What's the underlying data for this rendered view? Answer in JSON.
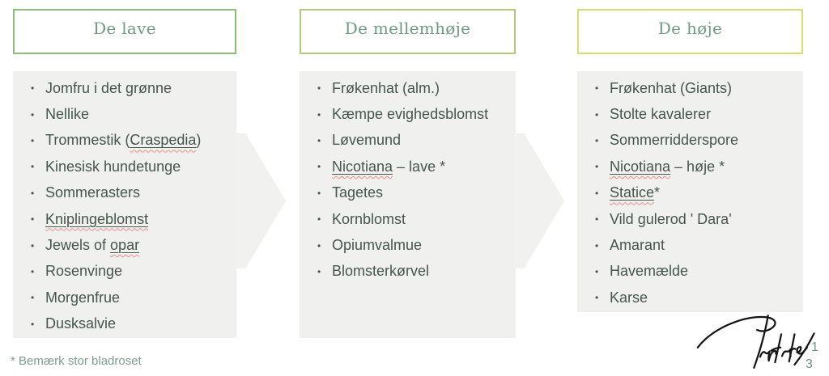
{
  "slide": {
    "columns": [
      {
        "header": "De lave",
        "border_color": "#8cbe77",
        "items": [
          "Jomfru i det grønne",
          "Nellike",
          "Trommestik ([[Craspedia]])",
          "Kinesisk hundetunge",
          "Sommerasters",
          "[[Kniplingeblomst]]",
          "Jewels of [[opar]]",
          "Rosenvinge",
          "Morgenfrue",
          "Dusksalvie"
        ]
      },
      {
        "header": "De mellemhøje",
        "border_color": "#aecb7c",
        "items": [
          "Frøkenhat (alm.)",
          "Kæmpe evighedsblomst",
          "Løvemund",
          "[[Nicotiana]] – lave *",
          "Tagetes",
          "Kornblomst",
          "Opiumvalmue",
          "Blomsterkørvel"
        ]
      },
      {
        "header": "De høje",
        "border_color": "#d6de6c",
        "items": [
          "Frøkenhat (Giants)",
          "Stolte kavalerer",
          "Sommerridderspore",
          "[[Nicotiana]] – høje *",
          "[[Statice]]*",
          "Vild gulerod ' Dara'",
          "Amarant",
          "Havemælde",
          "Karse"
        ]
      }
    ],
    "footnote": "* Bemærk stor bladroset",
    "signature_name": "Plantelier",
    "overlay_number": "1",
    "page_number": "3",
    "colors": {
      "header_text": "#6f9c81",
      "body_text": "#44564d",
      "panel_background": "#f0f0ef",
      "arrow_background": "#f1f1f0",
      "footnote_text": "#7c9f8d",
      "page_number_text": "#6e9386",
      "spellcheck_squiggle": "#ed8e86",
      "signature_ink": "#141414"
    }
  }
}
